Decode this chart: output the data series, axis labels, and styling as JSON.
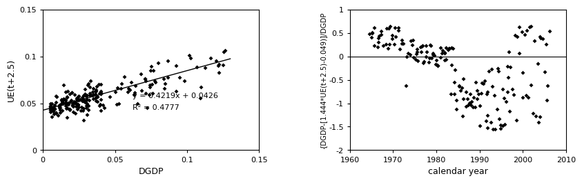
{
  "left_xlabel": "DGDP",
  "left_ylabel": "UE(t+2.5)",
  "left_xlim": [
    0,
    0.15
  ],
  "left_ylim": [
    0,
    0.15
  ],
  "left_xticks": [
    0,
    0.05,
    0.1,
    0.15
  ],
  "left_xticklabels": [
    "0",
    "0.05",
    "0.1",
    "0.15"
  ],
  "left_yticks": [
    0,
    0.05,
    0.1,
    0.15
  ],
  "left_yticklabels": [
    "0",
    "0.05",
    "0.1",
    "0.15"
  ],
  "equation_text": "y = 0.4219x + 0.0426",
  "r2_text": "R² = 0.4777",
  "slope": 0.4219,
  "intercept": 0.0426,
  "right_xlabel": "calendar year",
  "right_ylabel": "{DGDP-[1.444*UE(t+2.5)-0.049)]/DGDP",
  "right_xlim": [
    1960,
    2010
  ],
  "right_ylim": [
    -2,
    1
  ],
  "right_xticks": [
    1960,
    1970,
    1980,
    1990,
    2000,
    2010
  ],
  "right_xticklabels": [
    "1960",
    "1970",
    "1980",
    "1990",
    "2000",
    "2010"
  ],
  "right_yticks": [
    -2,
    -1.5,
    -1,
    -0.5,
    0,
    0.5,
    1
  ],
  "right_yticklabels": [
    "-2",
    "-1.5",
    "-1",
    "-0.5",
    "0",
    "0.5",
    "1"
  ],
  "marker_color": "black",
  "marker_size": 4,
  "line_color": "black",
  "hline_y": 0,
  "background_color": "white"
}
